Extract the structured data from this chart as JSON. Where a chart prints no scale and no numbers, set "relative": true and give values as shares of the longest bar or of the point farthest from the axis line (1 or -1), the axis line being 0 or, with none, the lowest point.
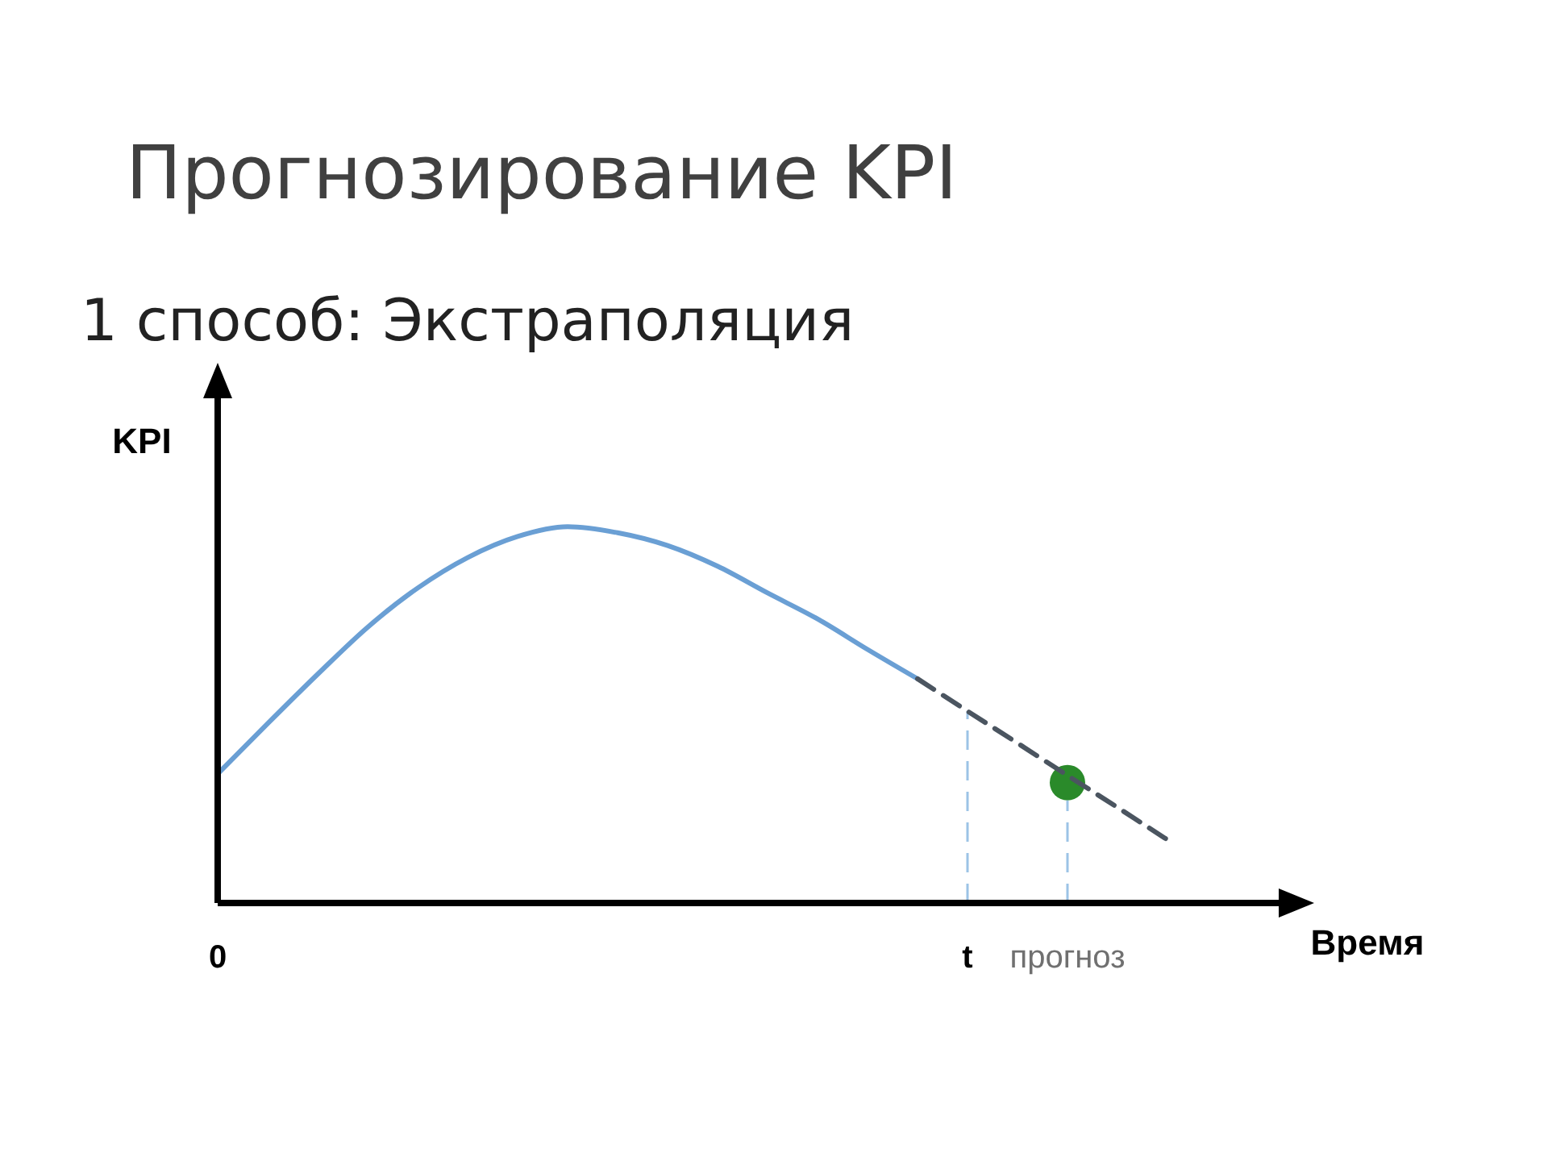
{
  "chart_data": {
    "type": "line",
    "title": "Прогнозирование KPI",
    "subtitle": "1 способ: Экстраполяция",
    "xlabel": "Время",
    "ylabel": "KPI",
    "relative": true,
    "categories": [
      "0",
      null,
      null,
      null,
      null,
      null,
      null,
      null,
      null,
      null,
      null,
      null,
      null,
      null,
      null,
      "t",
      null,
      "прогноз",
      null,
      null,
      null
    ],
    "series": [
      {
        "color": "#6a9fd4",
        "line_style": "solid",
        "values": [
          0.343,
          0.477,
          0.608,
          0.733,
          0.837,
          0.918,
          0.974,
          1,
          0.984,
          0.95,
          0.895,
          0.824,
          0.755,
          0.674,
          0.596,
          null,
          null,
          null,
          null,
          null,
          null
        ]
      },
      {
        "color": "#4b5560",
        "line_style": "dashed",
        "values": [
          null,
          null,
          null,
          null,
          null,
          null,
          null,
          null,
          null,
          null,
          null,
          null,
          null,
          null,
          0.596,
          0.51,
          0.425,
          0.339,
          0.254,
          0.168,
          null
        ]
      },
      {
        "type": "scatter",
        "color": "#2a8a2a",
        "marker": "circle",
        "x": [
          "прогноз"
        ],
        "values": [
          0.32
        ]
      }
    ],
    "ref_lines": [
      {
        "axis": "x",
        "value": "t",
        "color": "#9cc3e6",
        "line_style": "dashed"
      },
      {
        "axis": "x",
        "value": "прогноз",
        "color": "#9cc3e6",
        "line_style": "dashed"
      }
    ]
  }
}
